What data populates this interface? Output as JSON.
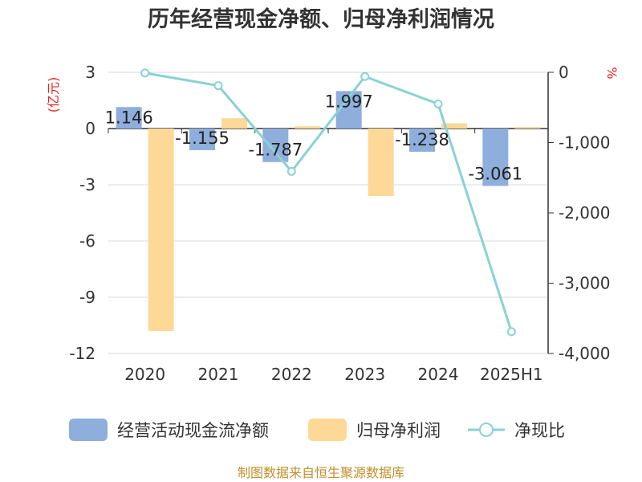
{
  "chart_data": {
    "type": "bar",
    "title": "历年经营现金净额、归母净利润情况",
    "categories": [
      "2020",
      "2021",
      "2022",
      "2023",
      "2024",
      "2025H1"
    ],
    "left_axis": {
      "unit": "(亿元)",
      "ylim": [
        -12,
        3
      ],
      "ticks": [
        3,
        0,
        -3,
        -6,
        -9,
        -12
      ],
      "tick_labels": [
        "3",
        "0",
        "-3",
        "-6",
        "-9",
        "-12"
      ]
    },
    "right_axis": {
      "unit": "%",
      "ylim": [
        -4000,
        0
      ],
      "ticks": [
        0,
        -1000,
        -2000,
        -3000,
        -4000
      ],
      "tick_labels": [
        "0",
        "-1,000",
        "-2,000",
        "-3,000",
        "-4,000"
      ]
    },
    "series": [
      {
        "name": "经营活动现金流净额",
        "type": "bar",
        "axis": "left",
        "color": "#8eaedc",
        "values": [
          1.146,
          -1.155,
          -1.787,
          1.997,
          -1.238,
          -3.061
        ],
        "labels": [
          "1.146",
          "-1.155",
          "-1.787",
          "1.997",
          "-1.238",
          "-3.061"
        ]
      },
      {
        "name": "归母净利润",
        "type": "bar",
        "axis": "left",
        "color": "#fed896",
        "values": [
          -10.8,
          0.55,
          0.12,
          -3.6,
          0.28,
          0.08
        ]
      },
      {
        "name": "净现比",
        "type": "line",
        "axis": "right",
        "color": "#89d2d4",
        "values": [
          -10,
          -190,
          -1410,
          -60,
          -450,
          -3690
        ]
      }
    ],
    "legend_position": "bottom",
    "grid": true
  },
  "footer": {
    "source": "制图数据来自恒生聚源数据库"
  }
}
